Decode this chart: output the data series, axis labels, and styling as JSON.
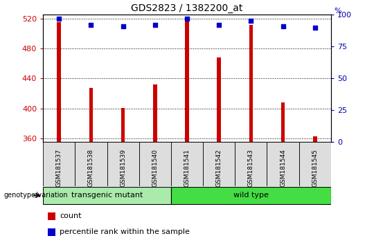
{
  "title": "GDS2823 / 1382200_at",
  "samples": [
    "GSM181537",
    "GSM181538",
    "GSM181539",
    "GSM181540",
    "GSM181541",
    "GSM181542",
    "GSM181543",
    "GSM181544",
    "GSM181545"
  ],
  "counts": [
    515,
    427,
    401,
    432,
    519,
    468,
    511,
    408,
    363
  ],
  "percentile_ranks": [
    97,
    92,
    91,
    92,
    97,
    92,
    95,
    91,
    90
  ],
  "ylim_left": [
    355,
    525
  ],
  "yticks_left": [
    360,
    400,
    440,
    480,
    520
  ],
  "ylim_right": [
    0,
    100
  ],
  "yticks_right": [
    0,
    25,
    50,
    75,
    100
  ],
  "groups": [
    {
      "label": "transgenic mutant",
      "start": 0,
      "end": 4,
      "color": "#aaeaaa"
    },
    {
      "label": "wild type",
      "start": 4,
      "end": 9,
      "color": "#44dd44"
    }
  ],
  "group_label_prefix": "genotype/variation",
  "bar_color": "#CC0000",
  "dot_color": "#0000CC",
  "bar_bottom": 355,
  "legend_items": [
    {
      "label": "count",
      "color": "#CC0000"
    },
    {
      "label": "percentile rank within the sample",
      "color": "#0000CC"
    }
  ],
  "axis_label_color_left": "#CC0000",
  "axis_label_color_right": "#0000AA",
  "sample_box_color": "#dddddd",
  "figure_width": 5.4,
  "figure_height": 3.54,
  "dpi": 100
}
